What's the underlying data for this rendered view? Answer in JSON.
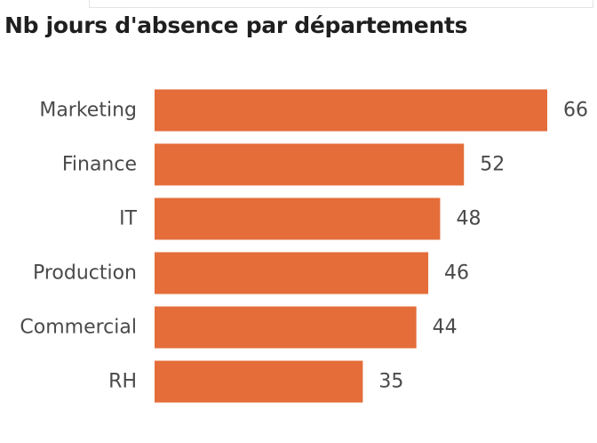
{
  "chart_data": {
    "type": "bar",
    "orientation": "horizontal",
    "title": "Nb jours d'absence par départements",
    "categories": [
      "Marketing",
      "Finance",
      "IT",
      "Production",
      "Commercial",
      "RH"
    ],
    "values": [
      66,
      52,
      48,
      46,
      44,
      35
    ],
    "data_labels": [
      "66",
      "52",
      "48",
      "46",
      "44",
      "35"
    ],
    "xlabel": "",
    "ylabel": "",
    "xlim": [
      0,
      66
    ],
    "grid": false,
    "legend": "none",
    "bar_color": "#E46D3A",
    "label_color": "#4a4a4a"
  }
}
